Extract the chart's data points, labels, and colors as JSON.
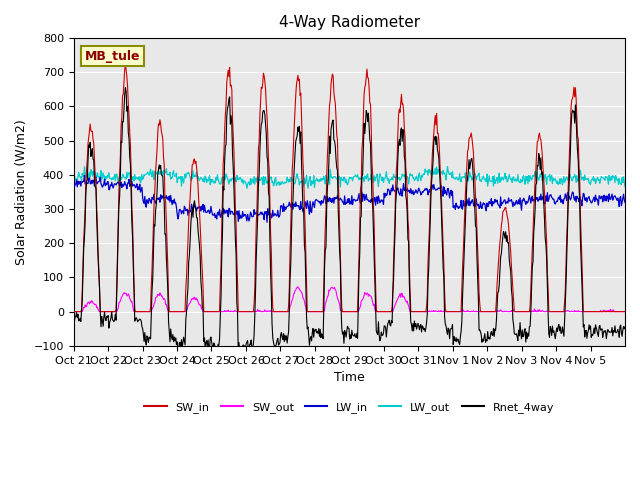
{
  "title": "4-Way Radiometer",
  "xlabel": "Time",
  "ylabel": "Solar Radiation (W/m2)",
  "ylim": [
    -100,
    800
  ],
  "annotation": "MB_tule",
  "background_color": "#e8e8e8",
  "x_tick_labels": [
    "Oct 21",
    "Oct 22",
    "Oct 23",
    "Oct 24",
    "Oct 25",
    "Oct 26",
    "Oct 27",
    "Oct 28",
    "Oct 29",
    "Oct 30",
    "Oct 31",
    "Nov 1",
    "Nov 2",
    "Nov 3",
    "Nov 4",
    "Nov 5"
  ],
  "n_days": 16,
  "legend_entries": [
    "SW_in",
    "SW_out",
    "LW_in",
    "LW_out",
    "Rnet_4way"
  ],
  "legend_colors": [
    "#cc0000",
    "#ff00ff",
    "#0000cc",
    "#00cccc",
    "#000000"
  ],
  "sw_peaks": [
    550,
    710,
    550,
    450,
    700,
    690,
    680,
    680,
    700,
    620,
    560,
    515,
    305,
    515,
    650,
    0
  ],
  "sw_out_peaks": [
    30,
    55,
    50,
    40,
    0,
    0,
    70,
    70,
    55,
    50,
    0,
    0,
    0,
    0,
    0,
    0
  ],
  "lw_in_base": [
    370,
    360,
    320,
    290,
    280,
    275,
    300,
    320,
    320,
    345,
    350,
    305,
    310,
    320,
    325,
    325
  ],
  "lw_out_base": [
    390,
    385,
    395,
    385,
    380,
    375,
    375,
    380,
    385,
    385,
    400,
    385,
    380,
    385,
    380,
    380
  ],
  "yticks": [
    -100,
    0,
    100,
    200,
    300,
    400,
    500,
    600,
    700,
    800
  ]
}
